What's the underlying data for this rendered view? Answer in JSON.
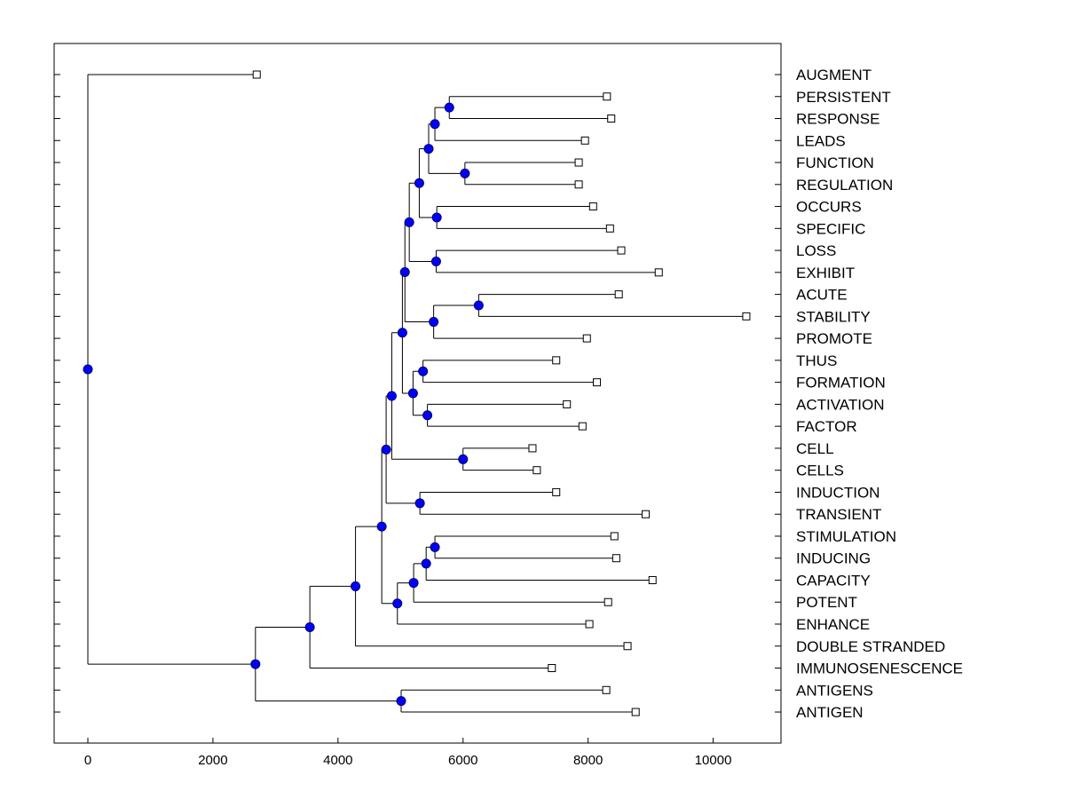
{
  "chart_data": {
    "type": "dendrogram",
    "title": "",
    "xlabel": "",
    "ylabel": "",
    "xlim": [
      -500,
      11000
    ],
    "x_ticks": [
      0,
      2000,
      4000,
      6000,
      8000,
      10000
    ],
    "x_tick_labels": [
      "0",
      "2000",
      "4000",
      "6000",
      "8000",
      "10000"
    ],
    "colors": {
      "node_fill": "#0000ff",
      "leaf_fill": "#ffffff",
      "line": "#000000"
    },
    "leaves": [
      {
        "label": "AUGMENT",
        "value": 2700
      },
      {
        "label": "PERSISTENT",
        "value": 8300
      },
      {
        "label": "RESPONSE",
        "value": 8370
      },
      {
        "label": "LEADS",
        "value": 7950
      },
      {
        "label": "FUNCTION",
        "value": 7850
      },
      {
        "label": "REGULATION",
        "value": 7850
      },
      {
        "label": "OCCURS",
        "value": 8080
      },
      {
        "label": "SPECIFIC",
        "value": 8350
      },
      {
        "label": "LOSS",
        "value": 8530
      },
      {
        "label": "EXHIBIT",
        "value": 9130
      },
      {
        "label": "ACUTE",
        "value": 8490
      },
      {
        "label": "STABILITY",
        "value": 10530
      },
      {
        "label": "PROMOTE",
        "value": 7980
      },
      {
        "label": "THUS",
        "value": 7490
      },
      {
        "label": "FORMATION",
        "value": 8140
      },
      {
        "label": "ACTIVATION",
        "value": 7660
      },
      {
        "label": "FACTOR",
        "value": 7910
      },
      {
        "label": "CELL",
        "value": 7110
      },
      {
        "label": "CELLS",
        "value": 7180
      },
      {
        "label": "INDUCTION",
        "value": 7490
      },
      {
        "label": "TRANSIENT",
        "value": 8920
      },
      {
        "label": "STIMULATION",
        "value": 8420
      },
      {
        "label": "INDUCING",
        "value": 8450
      },
      {
        "label": "CAPACITY",
        "value": 9030
      },
      {
        "label": "POTENT",
        "value": 8320
      },
      {
        "label": "ENHANCE",
        "value": 8020
      },
      {
        "label": "DOUBLE STRANDED",
        "value": 8630
      },
      {
        "label": "IMMUNOSENESCENCE",
        "value": 7420
      },
      {
        "label": "ANTIGENS",
        "value": 8290
      },
      {
        "label": "ANTIGEN",
        "value": 8760
      }
    ],
    "merges": [
      {
        "id": "m1",
        "children": [
          "PERSISTENT",
          "RESPONSE"
        ],
        "value": 5780
      },
      {
        "id": "m2",
        "children": [
          "m1",
          "LEADS"
        ],
        "value": 5550
      },
      {
        "id": "m3",
        "children": [
          "FUNCTION",
          "REGULATION"
        ],
        "value": 6030
      },
      {
        "id": "m4",
        "children": [
          "m2",
          "m3"
        ],
        "value": 5450
      },
      {
        "id": "m5",
        "children": [
          "OCCURS",
          "SPECIFIC"
        ],
        "value": 5580
      },
      {
        "id": "m6",
        "children": [
          "m4",
          "m5"
        ],
        "value": 5300
      },
      {
        "id": "m7",
        "children": [
          "LOSS",
          "EXHIBIT"
        ],
        "value": 5570
      },
      {
        "id": "m8",
        "children": [
          "m6",
          "m7"
        ],
        "value": 5140
      },
      {
        "id": "m9",
        "children": [
          "ACUTE",
          "STABILITY"
        ],
        "value": 6250
      },
      {
        "id": "m10",
        "children": [
          "m9",
          "PROMOTE"
        ],
        "value": 5530
      },
      {
        "id": "m11",
        "children": [
          "m8",
          "m10"
        ],
        "value": 5070
      },
      {
        "id": "m12",
        "children": [
          "THUS",
          "FORMATION"
        ],
        "value": 5360
      },
      {
        "id": "m13",
        "children": [
          "ACTIVATION",
          "FACTOR"
        ],
        "value": 5430
      },
      {
        "id": "m14",
        "children": [
          "m12",
          "m13"
        ],
        "value": 5200
      },
      {
        "id": "m15",
        "children": [
          "m11",
          "m14"
        ],
        "value": 5030
      },
      {
        "id": "m16",
        "children": [
          "CELL",
          "CELLS"
        ],
        "value": 6000
      },
      {
        "id": "m17",
        "children": [
          "m15",
          "m16"
        ],
        "value": 4860
      },
      {
        "id": "m18",
        "children": [
          "INDUCTION",
          "TRANSIENT"
        ],
        "value": 5310
      },
      {
        "id": "m19",
        "children": [
          "m17",
          "m18"
        ],
        "value": 4770
      },
      {
        "id": "m20",
        "children": [
          "STIMULATION",
          "INDUCING"
        ],
        "value": 5550
      },
      {
        "id": "m21",
        "children": [
          "m20",
          "CAPACITY"
        ],
        "value": 5410
      },
      {
        "id": "m22",
        "children": [
          "m21",
          "POTENT"
        ],
        "value": 5210
      },
      {
        "id": "m23",
        "children": [
          "m22",
          "ENHANCE"
        ],
        "value": 4950
      },
      {
        "id": "m24",
        "children": [
          "m19",
          "m23"
        ],
        "value": 4700
      },
      {
        "id": "m25",
        "children": [
          "m24",
          "DOUBLE STRANDED"
        ],
        "value": 4280
      },
      {
        "id": "m26",
        "children": [
          "m25",
          "IMMUNOSENESCENCE"
        ],
        "value": 3550
      },
      {
        "id": "m27",
        "children": [
          "ANTIGENS",
          "ANTIGEN"
        ],
        "value": 5010
      },
      {
        "id": "m28",
        "children": [
          "m26",
          "m27"
        ],
        "value": 2680
      },
      {
        "id": "m29",
        "children": [
          "AUGMENT",
          "m28"
        ],
        "value": 0
      }
    ]
  }
}
